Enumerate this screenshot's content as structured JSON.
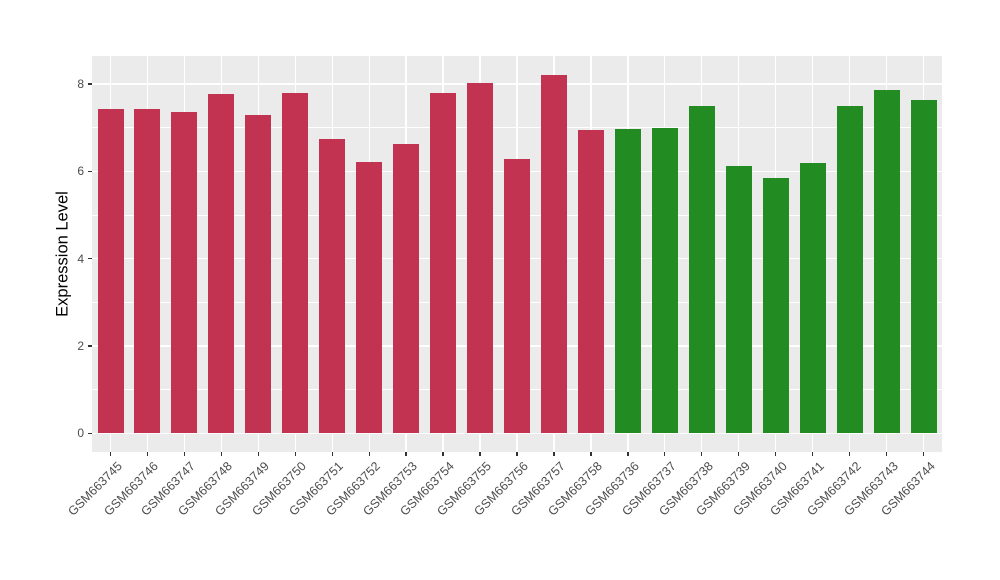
{
  "style": {
    "figure_bg": "#FFFFFF",
    "panel_bg": "#EBEBEB",
    "grid_color": "#FFFFFF",
    "axis_text_color": "#4D4D4D",
    "tick_mark_color": "#333333",
    "axis_title_color": "#000000",
    "bar_red": "#C23351",
    "bar_green": "#228B22"
  },
  "chart_data": {
    "type": "bar",
    "title": "",
    "xlabel": "",
    "ylabel": "Expression Level",
    "ylim": [
      0,
      8.65
    ],
    "yticks": [
      0,
      2,
      4,
      6,
      8
    ],
    "yticks_minor": [
      1,
      3,
      5,
      7
    ],
    "grid": "white major and minor horizontal lines, white vertical lines at bar centers, on gray panel",
    "legend_position": "none",
    "categories": [
      "GSM663745",
      "GSM663746",
      "GSM663747",
      "GSM663748",
      "GSM663749",
      "GSM663750",
      "GSM663751",
      "GSM663752",
      "GSM663753",
      "GSM663754",
      "GSM663755",
      "GSM663756",
      "GSM663757",
      "GSM663758",
      "GSM663736",
      "GSM663737",
      "GSM663738",
      "GSM663739",
      "GSM663740",
      "GSM663741",
      "GSM663742",
      "GSM663743",
      "GSM663744"
    ],
    "values": [
      7.42,
      7.42,
      7.37,
      7.77,
      7.3,
      7.79,
      6.74,
      6.21,
      6.64,
      7.8,
      8.03,
      6.28,
      8.22,
      6.95,
      6.97,
      6.99,
      7.5,
      6.13,
      5.86,
      6.19,
      7.49,
      7.86,
      7.64
    ],
    "groups": [
      {
        "name": "red-group",
        "color": "#C23351",
        "count": 14
      },
      {
        "name": "green-group",
        "color": "#228B22",
        "count": 9
      }
    ]
  }
}
